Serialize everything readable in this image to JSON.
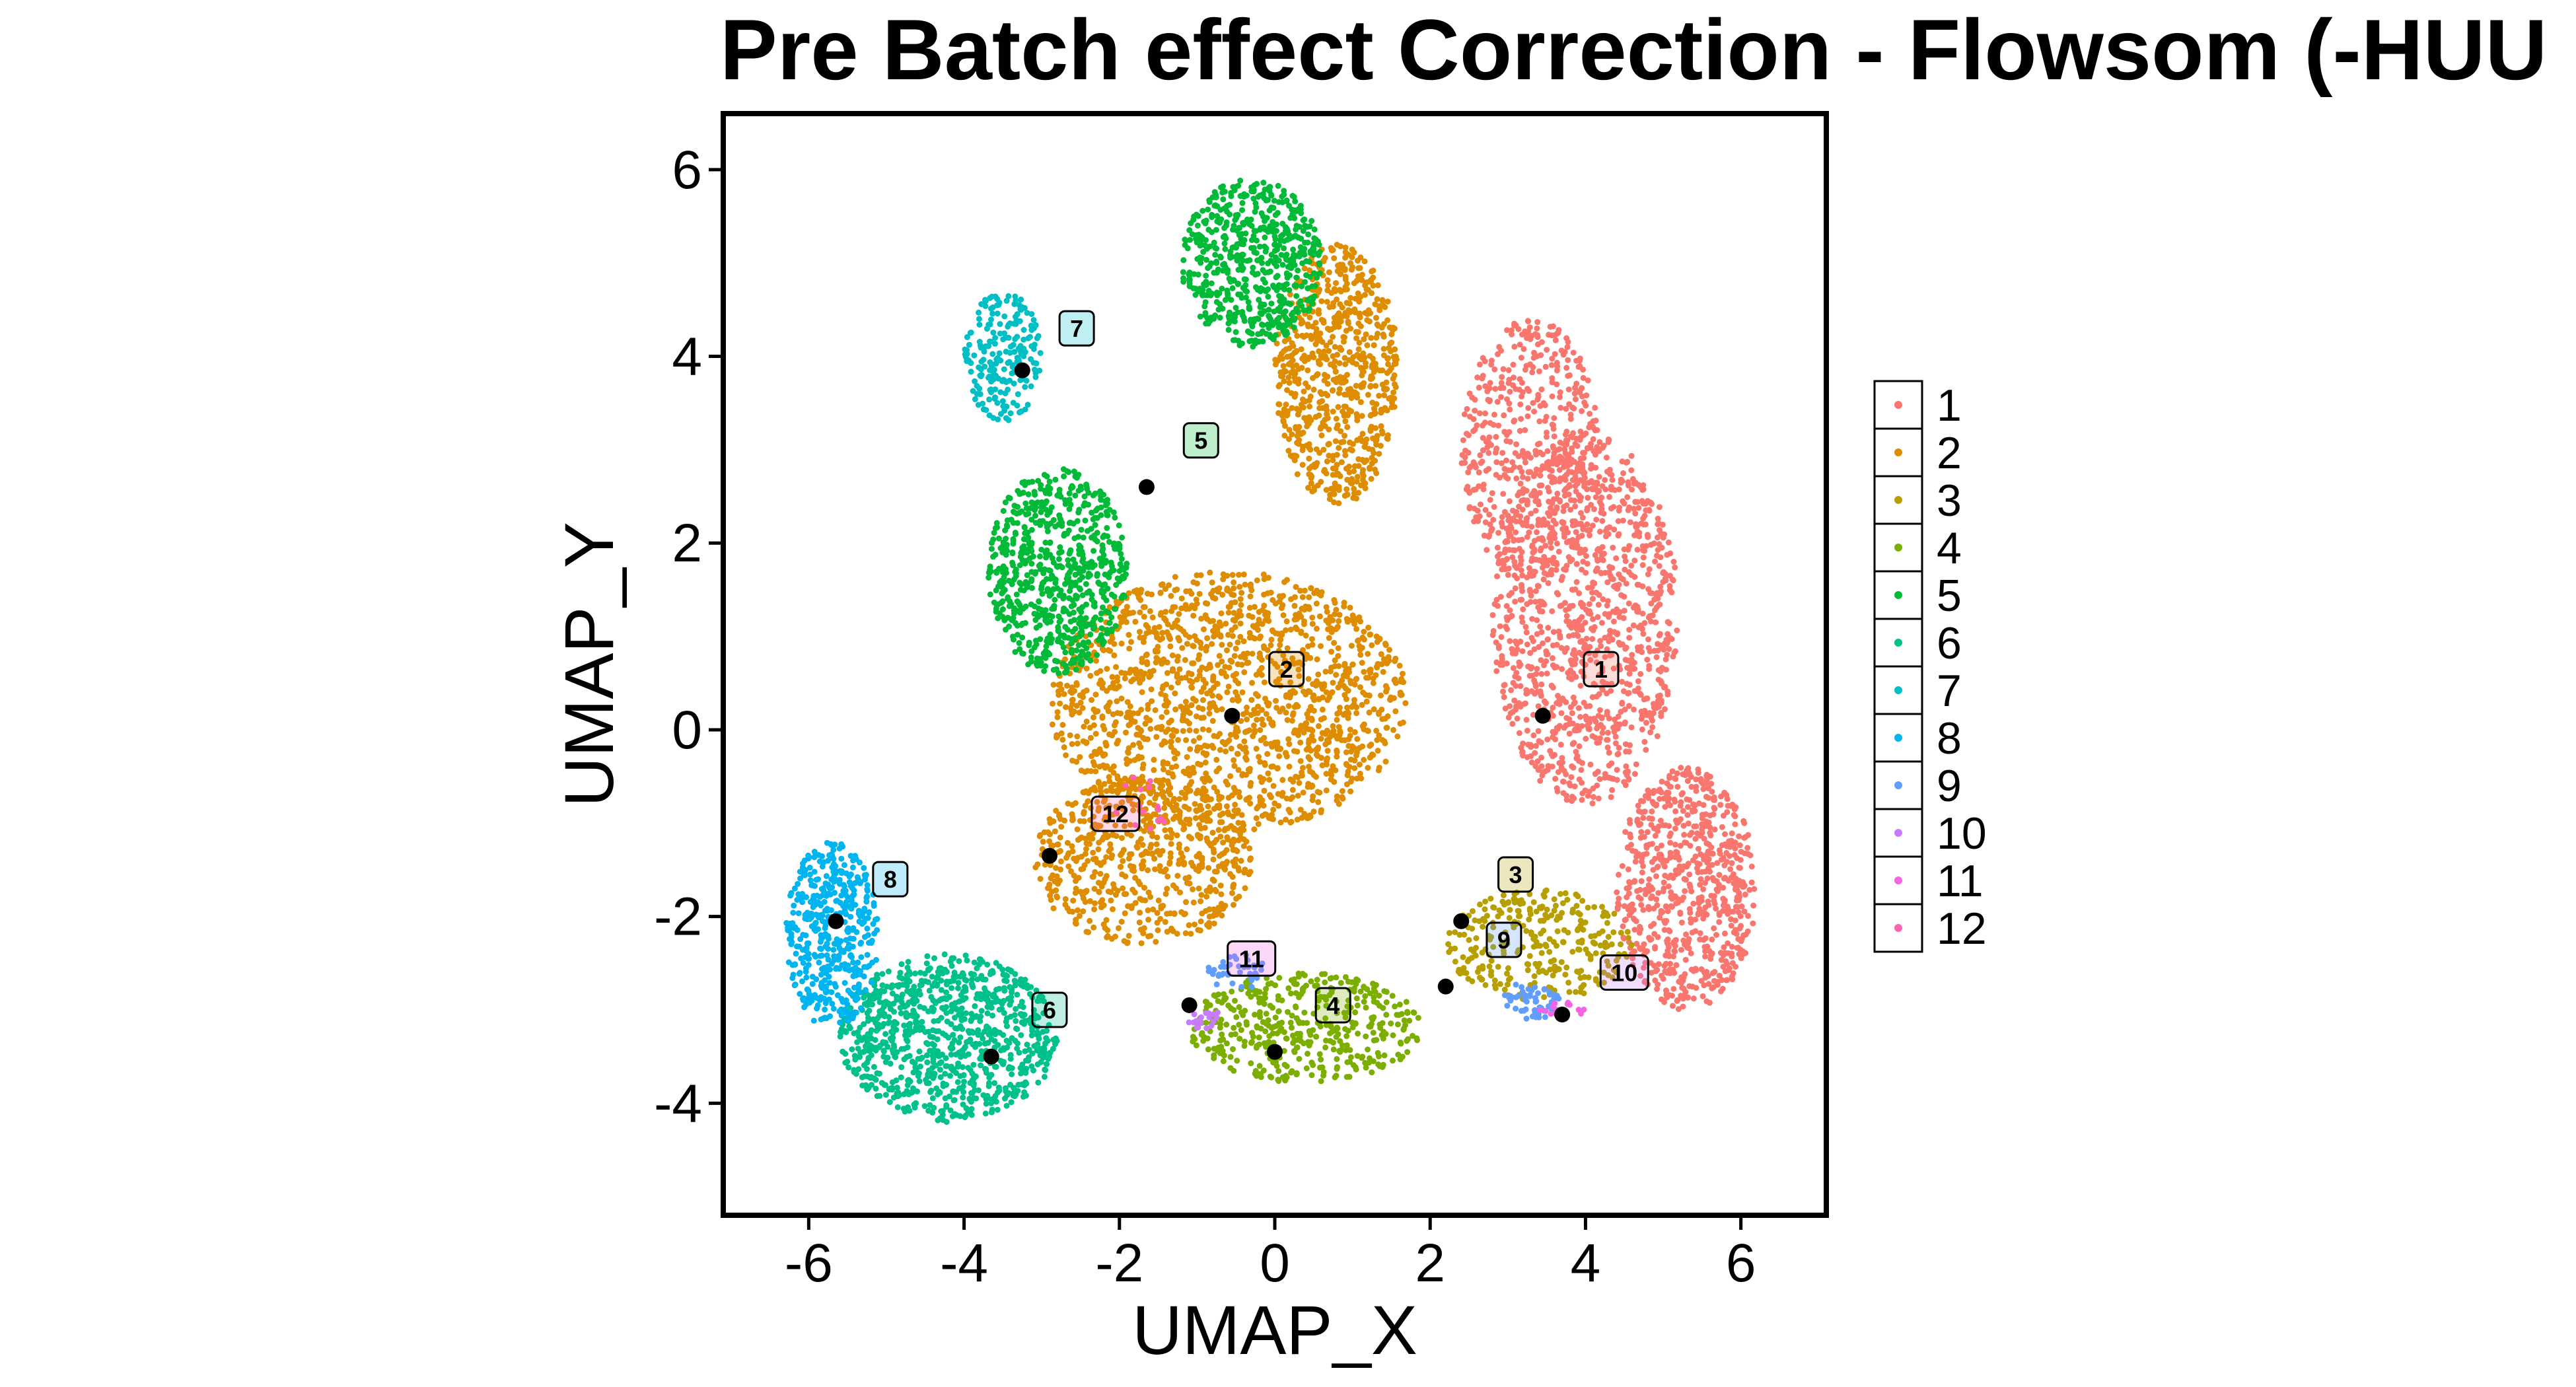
{
  "chart_data": {
    "type": "scatter",
    "title": "Pre Batch effect Correction - Flowsom (-HUU",
    "xlabel": "UMAP_X",
    "ylabel": "UMAP_Y",
    "xlim": [
      -7.1,
      7.1
    ],
    "ylim": [
      -5.2,
      6.6
    ],
    "xticks": [
      -6,
      -4,
      -2,
      0,
      2,
      4,
      6
    ],
    "yticks": [
      -4,
      -2,
      0,
      2,
      4,
      6
    ],
    "grid": false,
    "legend_position": "right",
    "series": [
      {
        "name": "1",
        "color": "#F8766D"
      },
      {
        "name": "2",
        "color": "#DE8C00"
      },
      {
        "name": "3",
        "color": "#B79F00"
      },
      {
        "name": "4",
        "color": "#7CAE00"
      },
      {
        "name": "5",
        "color": "#00BA38"
      },
      {
        "name": "6",
        "color": "#00C08B"
      },
      {
        "name": "7",
        "color": "#00BFC4"
      },
      {
        "name": "8",
        "color": "#00B4F0"
      },
      {
        "name": "9",
        "color": "#619CFF"
      },
      {
        "name": "10",
        "color": "#C77CFF"
      },
      {
        "name": "11",
        "color": "#F564E3"
      },
      {
        "name": "12",
        "color": "#FF64B0"
      }
    ],
    "regions": [
      {
        "cluster": "1",
        "cx": 4.0,
        "cy": 1.2,
        "rx": 1.2,
        "ry": 2.0,
        "n": 1100
      },
      {
        "cluster": "1",
        "cx": 3.3,
        "cy": 3.0,
        "rx": 0.9,
        "ry": 1.4,
        "n": 500
      },
      {
        "cluster": "1",
        "cx": 5.3,
        "cy": -1.7,
        "rx": 0.9,
        "ry": 1.3,
        "n": 700
      },
      {
        "cluster": "2",
        "cx": -0.6,
        "cy": 0.3,
        "rx": 2.3,
        "ry": 1.4,
        "n": 1500
      },
      {
        "cluster": "2",
        "cx": -1.7,
        "cy": -1.4,
        "rx": 1.4,
        "ry": 0.9,
        "n": 600
      },
      {
        "cluster": "2",
        "cx": 0.8,
        "cy": 3.8,
        "rx": 0.8,
        "ry": 1.4,
        "n": 700
      },
      {
        "cluster": "3",
        "cx": 3.4,
        "cy": -2.3,
        "rx": 1.2,
        "ry": 0.6,
        "n": 300
      },
      {
        "cluster": "4",
        "cx": 0.4,
        "cy": -3.2,
        "rx": 1.5,
        "ry": 0.6,
        "n": 450
      },
      {
        "cluster": "5",
        "cx": -2.8,
        "cy": 1.7,
        "rx": 0.9,
        "ry": 1.1,
        "n": 700
      },
      {
        "cluster": "5",
        "cx": -0.3,
        "cy": 5.0,
        "rx": 0.9,
        "ry": 0.9,
        "n": 600
      },
      {
        "cluster": "6",
        "cx": -4.2,
        "cy": -3.3,
        "rx": 1.4,
        "ry": 0.9,
        "n": 900
      },
      {
        "cluster": "7",
        "cx": -3.5,
        "cy": 4.0,
        "rx": 0.5,
        "ry": 0.7,
        "n": 220
      },
      {
        "cluster": "8",
        "cx": -5.7,
        "cy": -2.2,
        "rx": 0.6,
        "ry": 1.0,
        "n": 450
      },
      {
        "cluster": "9",
        "cx": 3.3,
        "cy": -2.9,
        "rx": 0.4,
        "ry": 0.2,
        "n": 60
      },
      {
        "cluster": "9",
        "cx": -0.5,
        "cy": -2.6,
        "rx": 0.4,
        "ry": 0.2,
        "n": 40
      },
      {
        "cluster": "10",
        "cx": -0.9,
        "cy": -3.1,
        "rx": 0.3,
        "ry": 0.1,
        "n": 20
      },
      {
        "cluster": "11",
        "cx": 3.7,
        "cy": -3.0,
        "rx": 0.3,
        "ry": 0.1,
        "n": 15
      },
      {
        "cluster": "12",
        "cx": -1.7,
        "cy": -0.8,
        "rx": 0.4,
        "ry": 0.3,
        "n": 15
      }
    ],
    "centroids": [
      {
        "label": "1",
        "x": 3.45,
        "y": 0.15,
        "label_x": 4.2,
        "label_y": 0.65
      },
      {
        "label": "2",
        "x": -0.55,
        "y": 0.15,
        "label_x": 0.15,
        "label_y": 0.65
      },
      {
        "label": "3",
        "x": 2.4,
        "y": -2.05,
        "label_x": 3.1,
        "label_y": -1.55
      },
      {
        "label": "4",
        "x": 0.0,
        "y": -3.45,
        "label_x": 0.75,
        "label_y": -2.95
      },
      {
        "label": "5",
        "x": -1.65,
        "y": 2.6,
        "label_x": -0.95,
        "label_y": 3.1
      },
      {
        "label": "6",
        "x": -3.65,
        "y": -3.5,
        "label_x": -2.9,
        "label_y": -3.0
      },
      {
        "label": "7",
        "x": -3.25,
        "y": 3.85,
        "label_x": -2.55,
        "label_y": 4.3
      },
      {
        "label": "8",
        "x": -5.65,
        "y": -2.05,
        "label_x": -4.95,
        "label_y": -1.6
      },
      {
        "label": "9",
        "x": 2.2,
        "y": -2.75,
        "label_x": 2.95,
        "label_y": -2.25
      },
      {
        "label": "10",
        "x": 3.7,
        "y": -3.05,
        "label_x": 4.5,
        "label_y": -2.6
      },
      {
        "label": "11",
        "x": -1.1,
        "y": -2.95,
        "label_x": -0.3,
        "label_y": -2.45
      },
      {
        "label": "12",
        "x": -2.9,
        "y": -1.35,
        "label_x": -2.05,
        "label_y": -0.9
      }
    ]
  }
}
